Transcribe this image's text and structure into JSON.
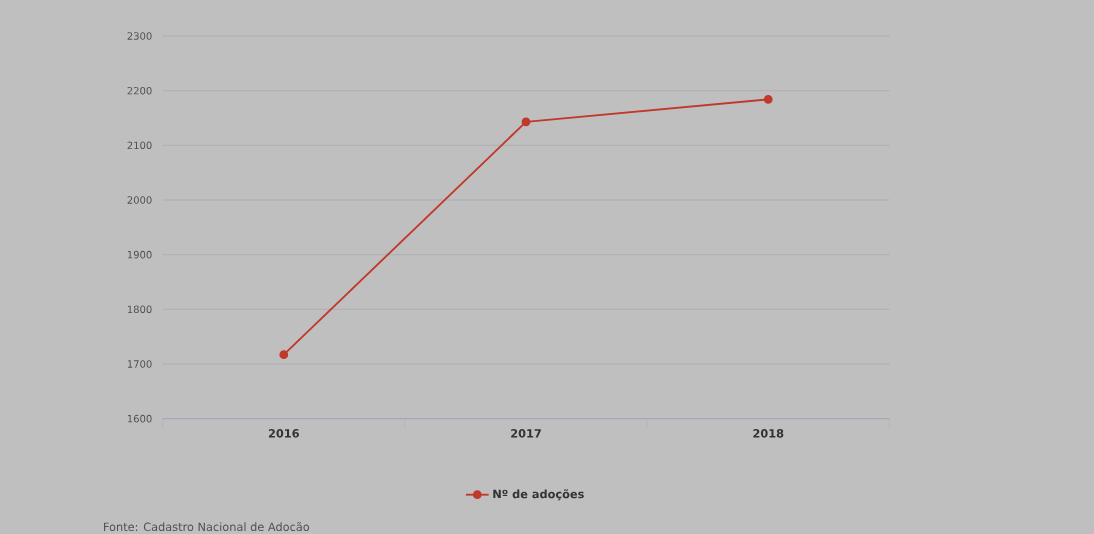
{
  "chart_data": {
    "type": "line",
    "categories": [
      "2016",
      "2017",
      "2018"
    ],
    "series": [
      {
        "name": "Nº de adoções",
        "color": "#c0392b",
        "values": [
          1717,
          2143,
          2184
        ]
      }
    ],
    "ylim": [
      1600,
      2300
    ],
    "yticks": [
      1600,
      1700,
      1800,
      1900,
      2000,
      2100,
      2200,
      2300
    ],
    "grid": "y",
    "legend": "bottom",
    "marker": "circle",
    "line_style": "solid",
    "annotations": [
      "Fonte: Cadastro Nacional de Adocão"
    ]
  }
}
